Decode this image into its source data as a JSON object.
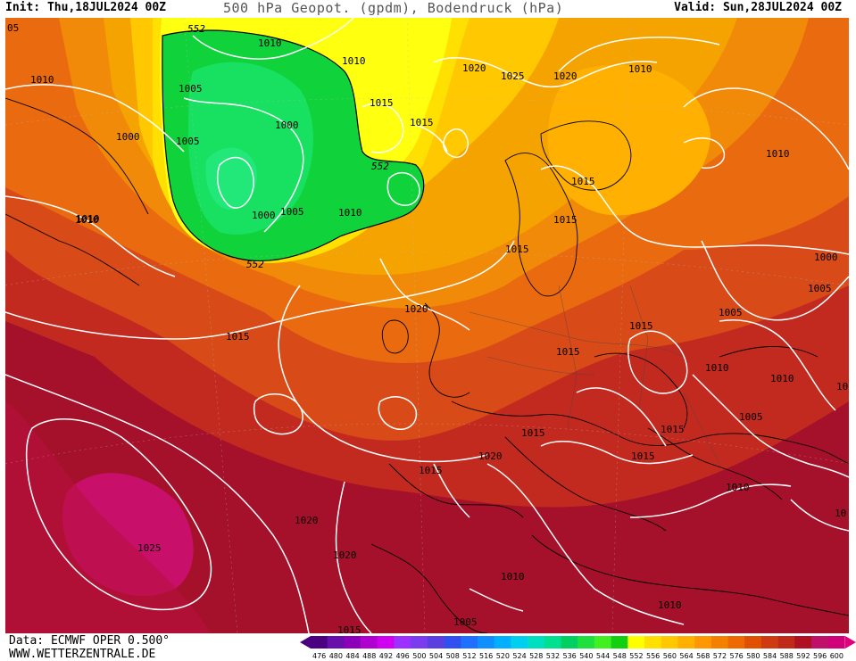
{
  "header": {
    "init": "Init: Thu,18JUL2024 00Z",
    "title": "500 hPa Geopot. (gpdm), Bodendruck (hPa)",
    "valid": "Valid: Sun,28JUL2024 00Z"
  },
  "footer": {
    "data_source": "Data: ECMWF OPER 0.500°",
    "website": "WWW.WETTERZENTRALE.DE"
  },
  "legend": {
    "values": [
      "476",
      "480",
      "484",
      "488",
      "492",
      "496",
      "500",
      "504",
      "508",
      "512",
      "516",
      "520",
      "524",
      "528",
      "532",
      "536",
      "540",
      "544",
      "548",
      "552",
      "556",
      "560",
      "564",
      "568",
      "572",
      "576",
      "580",
      "584",
      "588",
      "592",
      "596",
      "600"
    ],
    "colors": [
      "#4b0082",
      "#6a0dad",
      "#8b00b8",
      "#b000d0",
      "#d000f0",
      "#9b30ff",
      "#7b3cf0",
      "#5a40e0",
      "#3050f0",
      "#2070ff",
      "#1090ff",
      "#00b0ff",
      "#00d0f0",
      "#00e0c0",
      "#00e090",
      "#00d060",
      "#20e040",
      "#40f020",
      "#10d010",
      "#ffff00",
      "#ffe000",
      "#ffc800",
      "#ffb000",
      "#ff9800",
      "#f58000",
      "#ee6a00",
      "#e05000",
      "#d03a10",
      "#c02818",
      "#b01020",
      "#c0106a",
      "#d0007a"
    ]
  },
  "isobar_labels": [
    "05",
    "1010",
    "1000",
    "1005",
    "1010",
    "552",
    "1010",
    "1010",
    "1005",
    "1000",
    "1005",
    "1000",
    "1010",
    "552",
    "1015",
    "1015",
    "1020",
    "1025",
    "1020",
    "1010",
    "1010",
    "552",
    "1015",
    "1015",
    "1015",
    "1010",
    "1000",
    "1005",
    "1005",
    "1020",
    "1015",
    "1015",
    "1015",
    "1010",
    "1010",
    "1015",
    "1005",
    "1015",
    "1015",
    "1020",
    "1015",
    "1010",
    "10",
    "1020",
    "1025",
    "1020",
    "10",
    "1010",
    "1005",
    "1010",
    "1015"
  ],
  "colors": {
    "deep_red": "#a5102a",
    "magenta_high": "#c8106a",
    "orange": "#e0561a",
    "yellow": "#ffe600",
    "green": "#1ed04a"
  }
}
